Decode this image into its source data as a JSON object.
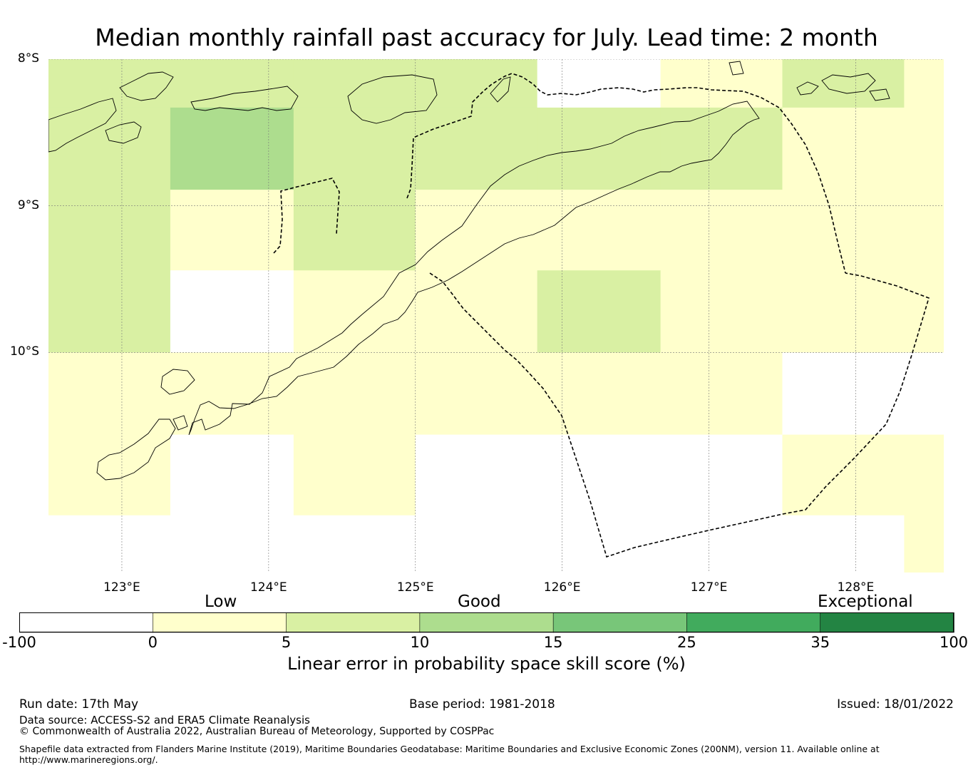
{
  "title": "Median monthly rainfall past accuracy for July. Lead time: 2 month",
  "map": {
    "lon_range": [
      122.5,
      128.6
    ],
    "lat_range": [
      -11.5,
      -8
    ],
    "lat_labels": [
      {
        "lat": -8,
        "label": "8°S"
      },
      {
        "lat": -9,
        "label": "9°S"
      },
      {
        "lat": -10,
        "label": "10°S"
      }
    ],
    "lon_labels": [
      {
        "lon": 123,
        "label": "123°E"
      },
      {
        "lon": 124,
        "label": "124°E"
      },
      {
        "lon": 125,
        "label": "125°E"
      },
      {
        "lon": 126,
        "label": "126°E"
      },
      {
        "lon": 127,
        "label": "127°E"
      },
      {
        "lon": 128,
        "label": "128°E"
      }
    ],
    "gridlines": true,
    "grid_lon_edges": [
      122.5,
      123.33,
      124.17,
      125.0,
      125.83,
      126.67,
      127.5,
      128.33,
      128.6
    ],
    "grid_lat_edges": [
      -8,
      -8.33,
      -8.89,
      -9.44,
      -10.0,
      -10.56,
      -11.11,
      -11.5
    ],
    "skill_class_grid": [
      [
        2,
        2,
        2,
        2,
        0,
        1,
        2,
        1
      ],
      [
        2,
        3,
        2,
        2,
        2,
        2,
        1,
        1
      ],
      [
        2,
        1,
        2,
        1,
        1,
        1,
        1,
        1
      ],
      [
        2,
        0,
        1,
        1,
        2,
        1,
        1,
        1
      ],
      [
        1,
        1,
        1,
        1,
        1,
        1,
        0,
        0
      ],
      [
        1,
        0,
        1,
        0,
        0,
        0,
        1,
        1
      ],
      [
        0,
        0,
        0,
        0,
        0,
        0,
        0,
        1
      ]
    ]
  },
  "colorbar": {
    "category_labels": [
      {
        "label": "Low",
        "at": 5
      },
      {
        "label": "Good",
        "at": 15
      },
      {
        "label": "Exceptional",
        "at": 35
      }
    ],
    "ticks": [
      "-100",
      "0",
      "5",
      "10",
      "15",
      "25",
      "35",
      "100"
    ],
    "colors": [
      "#ffffff",
      "#ffffcc",
      "#d9f0a3",
      "#addd8e",
      "#78c679",
      "#41ab5d",
      "#238443"
    ],
    "label": "Linear error in probability space skill score (%)"
  },
  "footer": {
    "run_date": "Run date: 17th May",
    "base_period": "Base period: 1981-2018",
    "issued": "Issued: 18/01/2022",
    "data_source": "Data source: ACCESS-S2 and ERA5 Climate Reanalysis",
    "copyright": "© Commonwealth of Australia 2022, Australian Bureau of Meteorology, Supported by COSPPac",
    "shapefile_line1": "Shapefile data extracted from Flanders Marine Institute (2019), Maritime Boundaries Geodatabase: Maritime Boundaries and Exclusive Economic Zones (200NM), version 11. Available online at",
    "shapefile_line2": "http://www.marineregions.org/."
  }
}
